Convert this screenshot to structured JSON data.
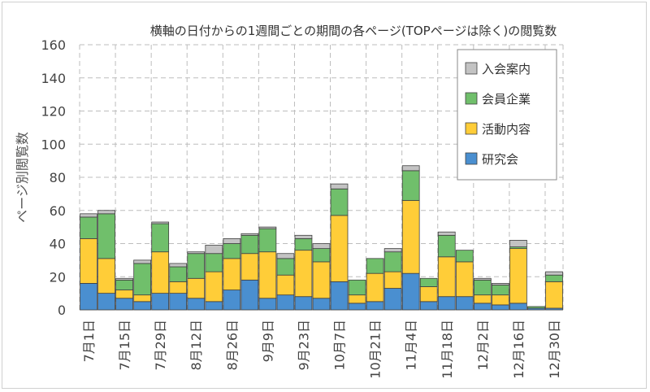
{
  "chart_data": {
    "type": "bar",
    "stacked": true,
    "title": "横軸の日付からの1週間ごとの期間の各ページ(TOPページは除く)の閲覧数",
    "xlabel": "",
    "ylabel": "ページ別閲覧数",
    "ylim": [
      0,
      160
    ],
    "yticks": [
      0,
      20,
      40,
      60,
      80,
      100,
      120,
      140,
      160
    ],
    "grid": true,
    "legend_position": "top-right",
    "categories": [
      "7月1日",
      "7月8日",
      "7月15日",
      "7月22日",
      "7月29日",
      "8月5日",
      "8月12日",
      "8月19日",
      "8月26日",
      "9月2日",
      "9月9日",
      "9月16日",
      "9月23日",
      "9月30日",
      "10月7日",
      "10月14日",
      "10月21日",
      "10月28日",
      "11月4日",
      "11月11日",
      "11月18日",
      "11月25日",
      "12月2日",
      "12月9日",
      "12月16日",
      "12月23日",
      "12月30日"
    ],
    "tick_labels": [
      "7月1日",
      "7月15日",
      "7月29日",
      "8月12日",
      "8月26日",
      "9月9日",
      "9月23日",
      "10月7日",
      "10月21日",
      "11月4日",
      "11月18日",
      "12月2日",
      "12月16日",
      "12月30日"
    ],
    "series": [
      {
        "name": "研究会",
        "color": "#4a8fd0",
        "values": [
          16,
          10,
          7,
          5,
          10,
          10,
          7,
          5,
          12,
          18,
          7,
          9,
          8,
          7,
          17,
          4,
          5,
          13,
          22,
          5,
          8,
          8,
          4,
          3,
          4,
          1,
          1
        ]
      },
      {
        "name": "活動内容",
        "color": "#ffcd38",
        "values": [
          27,
          21,
          5,
          4,
          25,
          7,
          12,
          18,
          19,
          16,
          28,
          12,
          28,
          22,
          40,
          5,
          17,
          10,
          44,
          9,
          24,
          21,
          5,
          6,
          33,
          0,
          16
        ]
      },
      {
        "name": "会員企業",
        "color": "#70bf6b",
        "values": [
          13,
          27,
          6,
          19,
          17,
          9,
          15,
          11,
          9,
          11,
          14,
          10,
          7,
          8,
          16,
          9,
          9,
          12,
          18,
          5,
          13,
          7,
          9,
          6,
          1,
          1,
          4
        ]
      },
      {
        "name": "入会案内",
        "color": "#c3c3c3",
        "values": [
          2,
          2,
          1,
          2,
          1,
          2,
          1,
          5,
          3,
          1,
          1,
          3,
          2,
          3,
          3,
          0,
          0,
          2,
          3,
          0,
          2,
          0,
          1,
          1,
          4,
          0,
          2
        ]
      }
    ]
  }
}
